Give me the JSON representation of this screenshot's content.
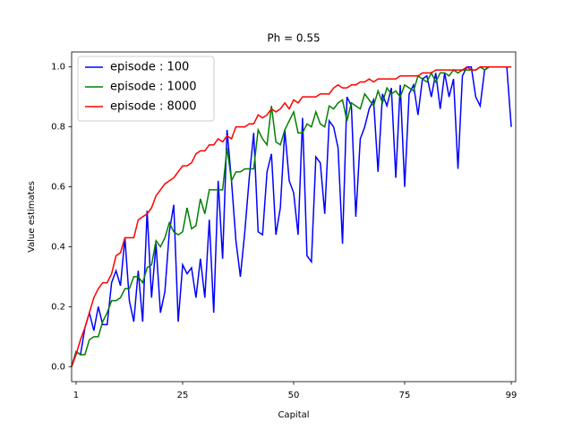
{
  "chart_data": {
    "type": "line",
    "title": "Ph = 0.55",
    "xlabel": "Capital",
    "ylabel": "Value estimates",
    "x": [
      0,
      1,
      2,
      3,
      4,
      5,
      6,
      7,
      8,
      9,
      10,
      11,
      12,
      13,
      14,
      15,
      16,
      17,
      18,
      19,
      20,
      21,
      22,
      23,
      24,
      25,
      26,
      27,
      28,
      29,
      30,
      31,
      32,
      33,
      34,
      35,
      36,
      37,
      38,
      39,
      40,
      41,
      42,
      43,
      44,
      45,
      46,
      47,
      48,
      49,
      50,
      51,
      52,
      53,
      54,
      55,
      56,
      57,
      58,
      59,
      60,
      61,
      62,
      63,
      64,
      65,
      66,
      67,
      68,
      69,
      70,
      71,
      72,
      73,
      74,
      75,
      76,
      77,
      78,
      79,
      80,
      81,
      82,
      83,
      84,
      85,
      86,
      87,
      88,
      89,
      90,
      91,
      92,
      93,
      94,
      95,
      96,
      97,
      98,
      99
    ],
    "series": [
      {
        "name": "episode : 100",
        "color": "#0000ff",
        "values": [
          0,
          0.05,
          0.04,
          0.13,
          0.18,
          0.12,
          0.2,
          0.14,
          0.14,
          0.28,
          0.32,
          0.27,
          0.43,
          0.22,
          0.15,
          0.32,
          0.15,
          0.52,
          0.23,
          0.41,
          0.18,
          0.25,
          0.45,
          0.54,
          0.15,
          0.34,
          0.31,
          0.33,
          0.23,
          0.36,
          0.23,
          0.49,
          0.18,
          0.62,
          0.36,
          0.79,
          0.62,
          0.42,
          0.3,
          0.45,
          0.63,
          0.78,
          0.45,
          0.44,
          0.65,
          0.71,
          0.44,
          0.53,
          0.79,
          0.62,
          0.58,
          0.44,
          0.83,
          0.37,
          0.35,
          0.7,
          0.68,
          0.51,
          0.82,
          0.8,
          0.73,
          0.41,
          0.9,
          0.87,
          0.5,
          0.76,
          0.8,
          0.86,
          0.89,
          0.65,
          0.91,
          0.87,
          0.93,
          0.63,
          0.94,
          0.6,
          0.91,
          0.94,
          0.84,
          0.96,
          0.97,
          0.9,
          0.98,
          0.86,
          0.98,
          0.9,
          0.96,
          0.66,
          0.97,
          1.0,
          1.0,
          0.9,
          0.87,
          0.99,
          1.0,
          1.0,
          1.0,
          1.0,
          1.0,
          0.8
        ]
      },
      {
        "name": "episode : 1000",
        "color": "#008000",
        "values": [
          0,
          0.05,
          0.04,
          0.04,
          0.09,
          0.1,
          0.1,
          0.15,
          0.18,
          0.22,
          0.22,
          0.23,
          0.26,
          0.26,
          0.3,
          0.3,
          0.28,
          0.33,
          0.34,
          0.42,
          0.4,
          0.43,
          0.48,
          0.45,
          0.44,
          0.45,
          0.53,
          0.46,
          0.47,
          0.56,
          0.51,
          0.59,
          0.59,
          0.59,
          0.59,
          0.73,
          0.62,
          0.65,
          0.65,
          0.66,
          0.66,
          0.66,
          0.79,
          0.76,
          0.74,
          0.87,
          0.75,
          0.74,
          0.79,
          0.82,
          0.85,
          0.78,
          0.78,
          0.81,
          0.8,
          0.85,
          0.81,
          0.8,
          0.87,
          0.86,
          0.88,
          0.89,
          0.82,
          0.88,
          0.87,
          0.86,
          0.91,
          0.89,
          0.87,
          0.92,
          0.88,
          0.93,
          0.91,
          0.92,
          0.9,
          0.94,
          0.93,
          0.92,
          0.97,
          0.96,
          0.95,
          0.98,
          0.95,
          0.98,
          0.98,
          0.97,
          0.99,
          0.98,
          0.99,
          0.99,
          0.99,
          0.99,
          1.0,
          0.99,
          1.0,
          1.0,
          1.0,
          1.0,
          1.0,
          1.0
        ]
      },
      {
        "name": "episode : 8000",
        "color": "#ff0000",
        "values": [
          0,
          0.04,
          0.09,
          0.13,
          0.18,
          0.23,
          0.26,
          0.28,
          0.28,
          0.31,
          0.37,
          0.38,
          0.43,
          0.43,
          0.43,
          0.49,
          0.5,
          0.51,
          0.53,
          0.57,
          0.59,
          0.61,
          0.62,
          0.63,
          0.65,
          0.67,
          0.67,
          0.68,
          0.71,
          0.72,
          0.72,
          0.74,
          0.74,
          0.76,
          0.75,
          0.77,
          0.76,
          0.8,
          0.8,
          0.8,
          0.81,
          0.81,
          0.84,
          0.83,
          0.84,
          0.86,
          0.85,
          0.86,
          0.88,
          0.86,
          0.89,
          0.88,
          0.9,
          0.9,
          0.9,
          0.9,
          0.91,
          0.91,
          0.91,
          0.93,
          0.94,
          0.93,
          0.93,
          0.94,
          0.94,
          0.95,
          0.95,
          0.96,
          0.95,
          0.96,
          0.96,
          0.96,
          0.96,
          0.96,
          0.97,
          0.97,
          0.97,
          0.97,
          0.97,
          0.98,
          0.98,
          0.98,
          0.99,
          0.99,
          0.99,
          0.99,
          0.99,
          0.99,
          0.99,
          1.0,
          0.99,
          0.99,
          1.0,
          1.0,
          1.0,
          1.0,
          1.0,
          1.0,
          1.0,
          1.0
        ]
      }
    ],
    "xlim": [
      0,
      100
    ],
    "xticks": [
      1,
      25,
      50,
      75,
      99
    ],
    "ylim": [
      -0.05,
      1.05
    ],
    "yticks": [
      {
        "value": 0,
        "label": "0.0"
      },
      {
        "value": 0.2,
        "label": "0.2"
      },
      {
        "value": 0.4,
        "label": "0.4"
      },
      {
        "value": 0.6,
        "label": "0.6"
      },
      {
        "value": 0.8,
        "label": "0.8"
      },
      {
        "value": 1,
        "label": "1.0"
      }
    ],
    "legend": "upper left"
  }
}
